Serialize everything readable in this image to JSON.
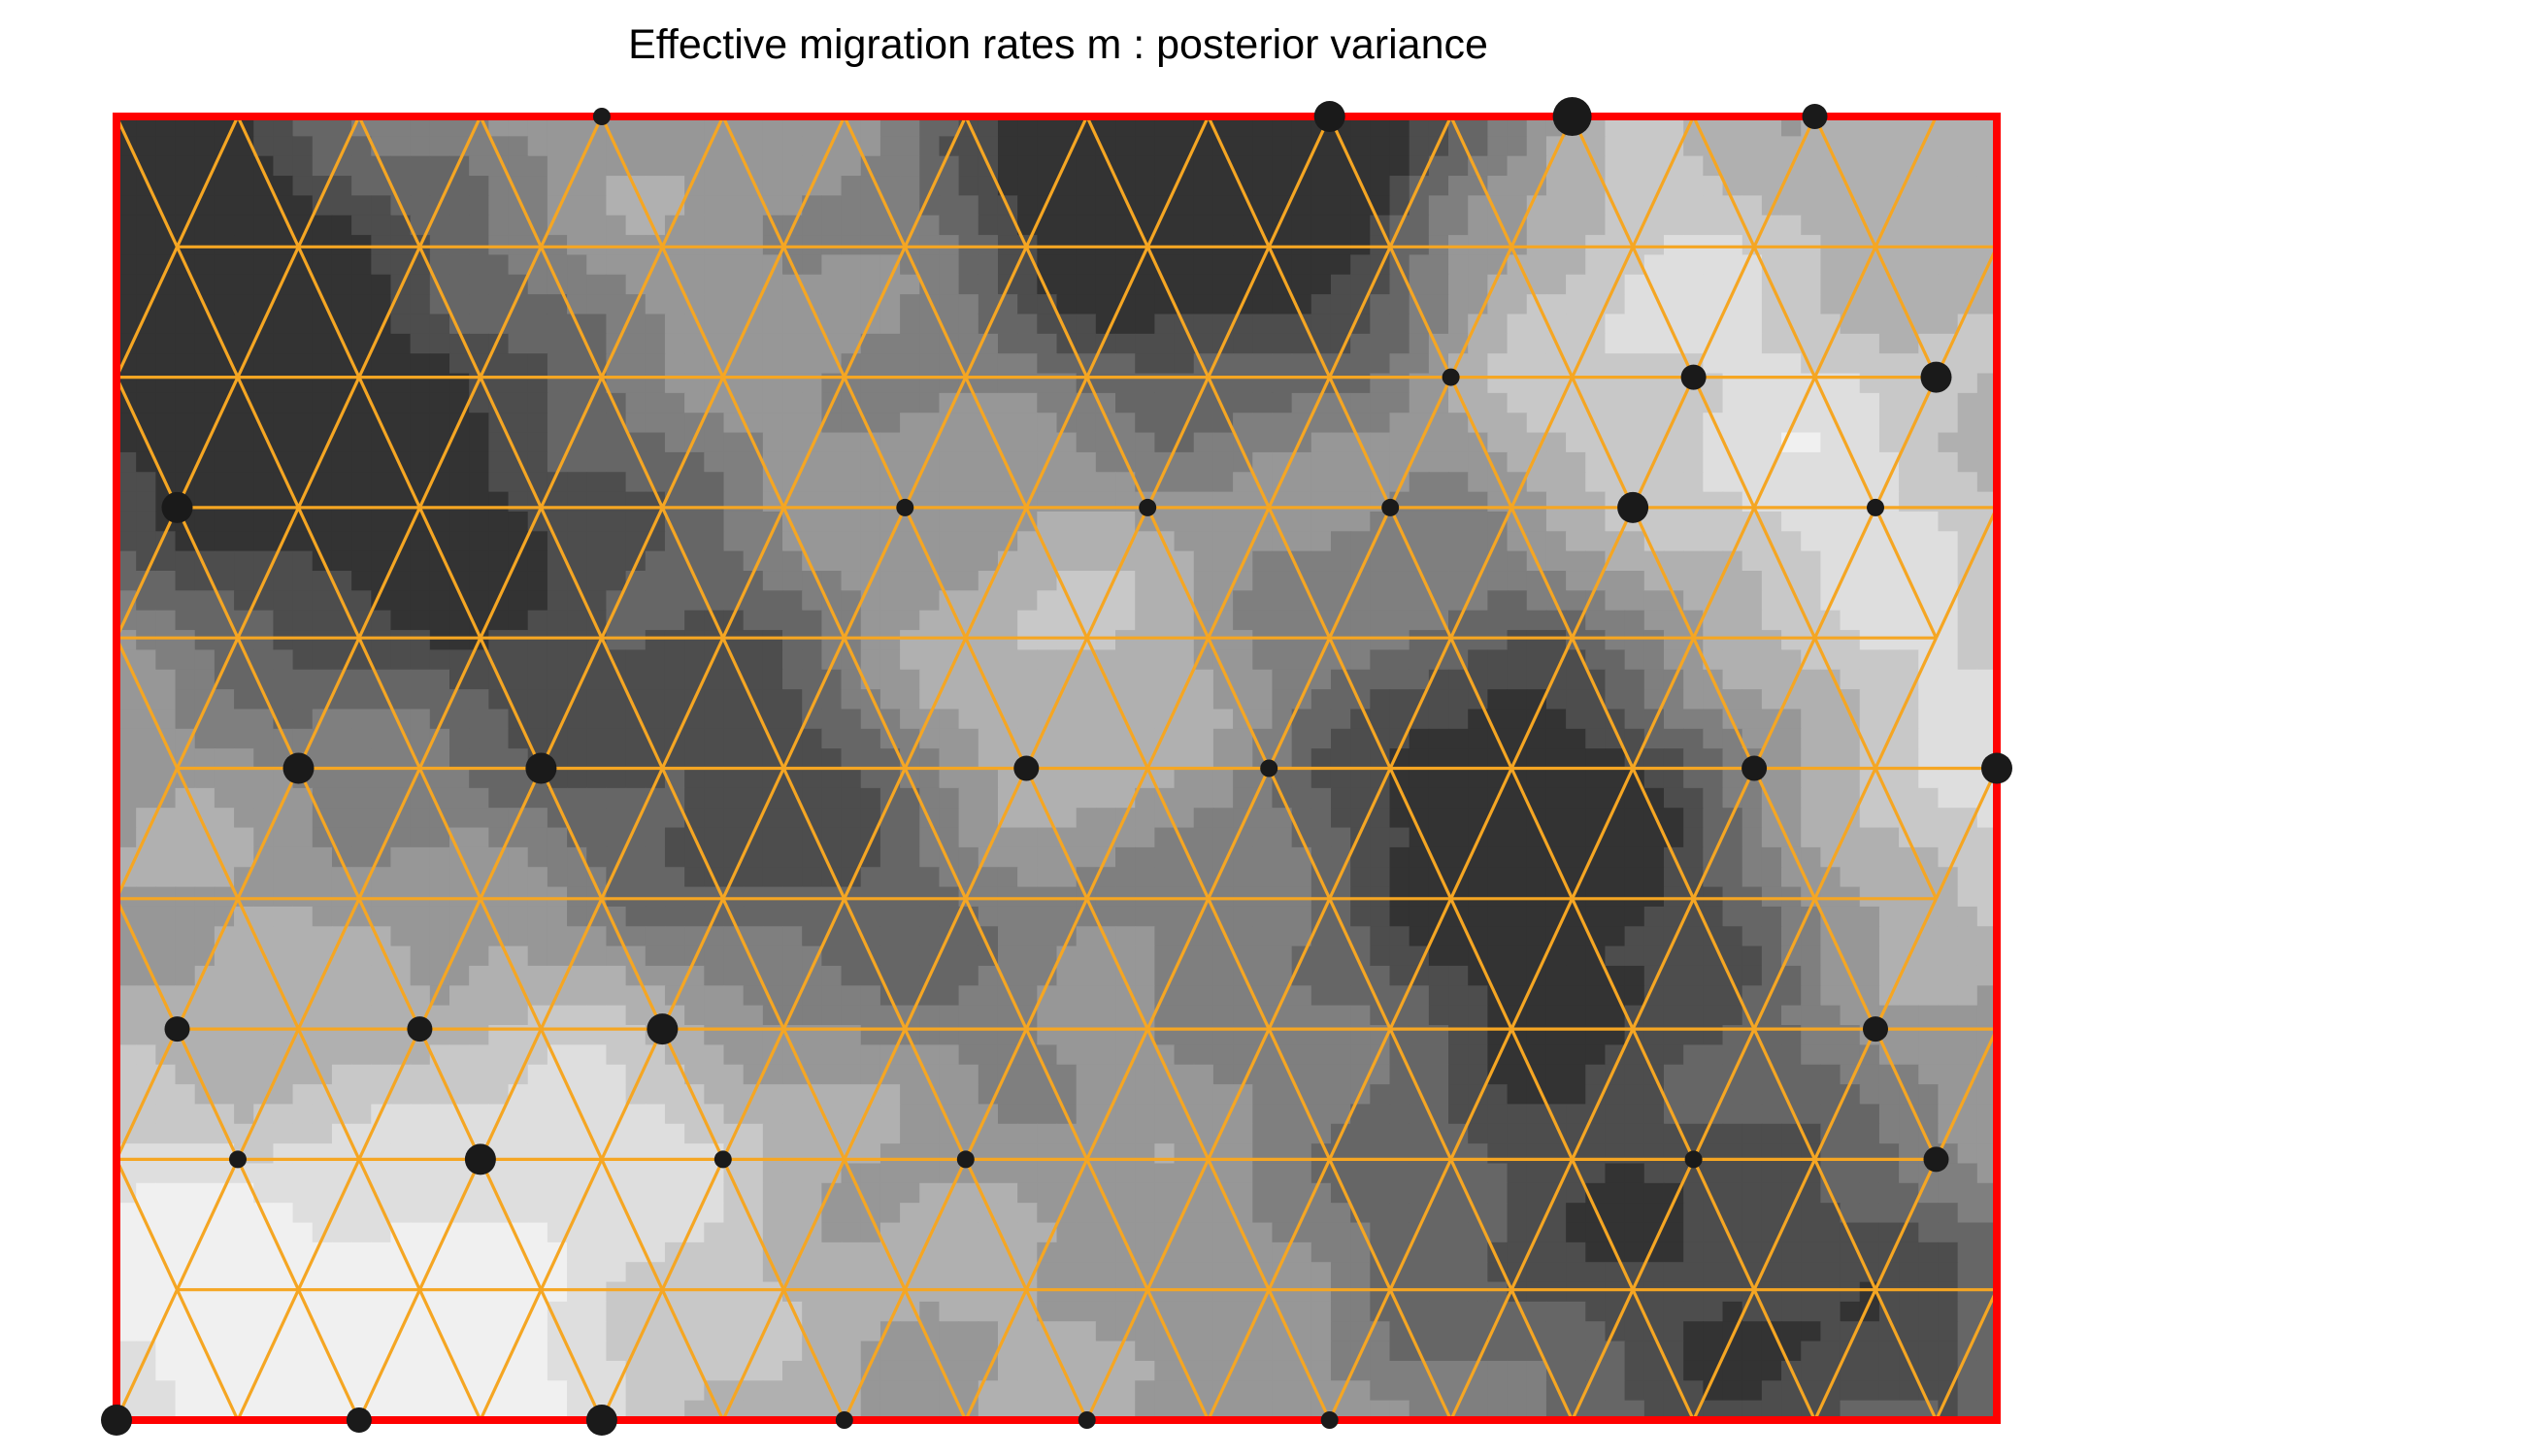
{
  "chart_data": {
    "type": "heatmap",
    "title": "Effective migration rates m : posterior variance",
    "subtitle": "",
    "xlabel": "",
    "ylabel": "",
    "colors": {
      "border": "#ff0000",
      "grid_lines": "#f5a623",
      "points": "#1a1a1a",
      "shade_scale": [
        "#f0f0f0",
        "#dedede",
        "#c8c8c8",
        "#b0b0b0",
        "#979797",
        "#7f7f7f",
        "#666666",
        "#4d4d4d",
        "#333333"
      ]
    },
    "grid": {
      "columns": 16,
      "rows": 11,
      "triangular": true
    },
    "variance_field": {
      "description_levels": 9,
      "hotspots": [
        {
          "u": 0.02,
          "v": 0.08,
          "level": 8
        },
        {
          "u": 0.1,
          "v": 0.25,
          "level": 7
        },
        {
          "u": 0.2,
          "v": 0.35,
          "level": 6
        },
        {
          "u": 0.36,
          "v": 0.52,
          "level": 7
        },
        {
          "u": 0.55,
          "v": 0.05,
          "level": 7
        },
        {
          "u": 0.62,
          "v": 0.02,
          "level": 8
        },
        {
          "u": 0.73,
          "v": 0.5,
          "level": 7
        },
        {
          "u": 0.8,
          "v": 0.62,
          "level": 6
        },
        {
          "u": 0.92,
          "v": 0.95,
          "level": 7
        },
        {
          "u": 0.75,
          "v": 0.85,
          "level": 6
        },
        {
          "u": 0.47,
          "v": 0.58,
          "level": 5
        }
      ],
      "coolspots": [
        {
          "u": 0.48,
          "v": 0.47,
          "level": 0
        },
        {
          "u": 0.78,
          "v": 0.12,
          "level": 1
        },
        {
          "u": 0.9,
          "v": 0.3,
          "level": 1
        },
        {
          "u": 0.17,
          "v": 0.98,
          "level": 0
        },
        {
          "u": 0.26,
          "v": 0.78,
          "level": 1
        },
        {
          "u": 0.98,
          "v": 0.52,
          "level": 1
        },
        {
          "u": 0.03,
          "v": 0.9,
          "level": 0
        }
      ]
    },
    "samples": [
      {
        "col": 4,
        "row": 0,
        "size": 1
      },
      {
        "col": 10,
        "row": 0,
        "size": 3
      },
      {
        "col": 12,
        "row": 0,
        "size": 4
      },
      {
        "col": 14,
        "row": 0,
        "size": 2
      },
      {
        "col": 11,
        "row": 2,
        "size": 1
      },
      {
        "col": 13,
        "row": 2,
        "size": 2
      },
      {
        "col": 15,
        "row": 2,
        "size": 3
      },
      {
        "col": 0.5,
        "row": 3,
        "size": 3
      },
      {
        "col": 6.5,
        "row": 3,
        "size": 1
      },
      {
        "col": 8.5,
        "row": 3,
        "size": 1
      },
      {
        "col": 10.5,
        "row": 3,
        "size": 1
      },
      {
        "col": 12.5,
        "row": 3,
        "size": 3
      },
      {
        "col": 14.5,
        "row": 3,
        "size": 1
      },
      {
        "col": 1.5,
        "row": 5,
        "size": 3
      },
      {
        "col": 3.5,
        "row": 5,
        "size": 3
      },
      {
        "col": 7.5,
        "row": 5,
        "size": 2
      },
      {
        "col": 9.5,
        "row": 5,
        "size": 1
      },
      {
        "col": 13.5,
        "row": 5,
        "size": 2
      },
      {
        "col": 15.5,
        "row": 5,
        "size": 3
      },
      {
        "col": 0.5,
        "row": 7,
        "size": 2
      },
      {
        "col": 2.5,
        "row": 7,
        "size": 2
      },
      {
        "col": 4.5,
        "row": 7,
        "size": 3
      },
      {
        "col": 14.5,
        "row": 7,
        "size": 2
      },
      {
        "col": 1,
        "row": 8,
        "size": 1
      },
      {
        "col": 3,
        "row": 8,
        "size": 3
      },
      {
        "col": 5,
        "row": 8,
        "size": 1
      },
      {
        "col": 7,
        "row": 8,
        "size": 1
      },
      {
        "col": 13,
        "row": 8,
        "size": 1
      },
      {
        "col": 15,
        "row": 8,
        "size": 2
      },
      {
        "col": 0,
        "row": 10,
        "size": 3
      },
      {
        "col": 2,
        "row": 10,
        "size": 2
      },
      {
        "col": 4,
        "row": 10,
        "size": 3
      },
      {
        "col": 6,
        "row": 10,
        "size": 1
      },
      {
        "col": 8,
        "row": 10,
        "size": 1
      },
      {
        "col": 10,
        "row": 10,
        "size": 1
      }
    ],
    "legend": "none"
  }
}
